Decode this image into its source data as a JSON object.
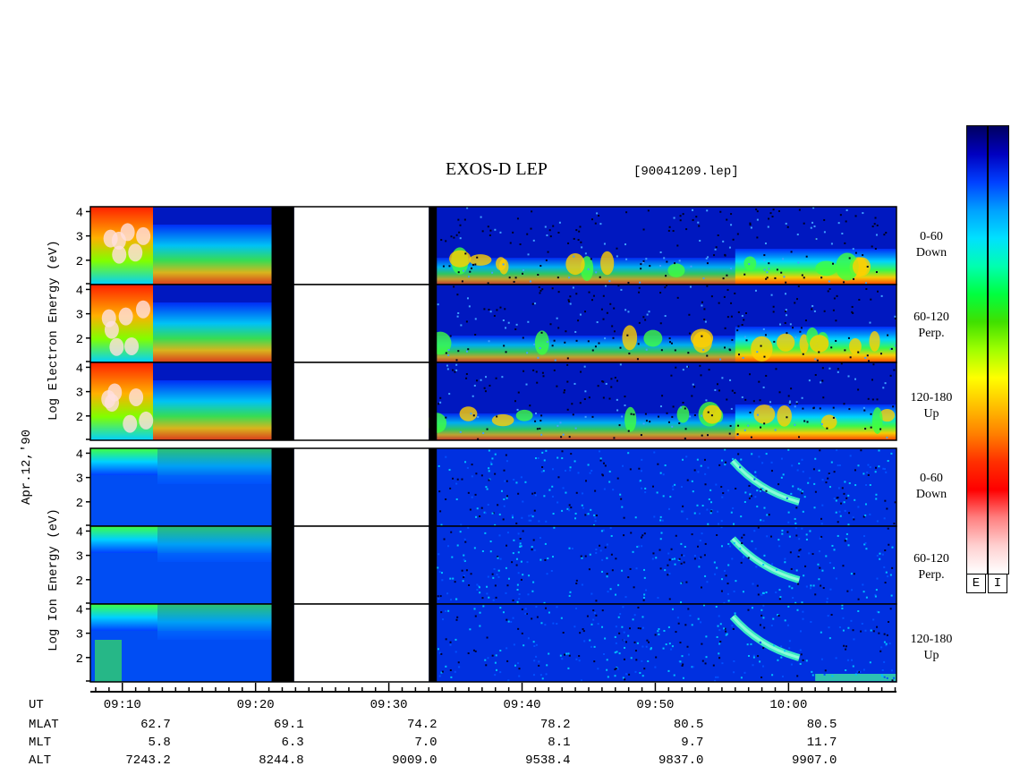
{
  "header": {
    "title": "EXOS-D LEP",
    "filename": "[90041209.lep]"
  },
  "left_labels": {
    "date": "Apr.12,'90",
    "electron": "Log  Electron  Energy (eV)",
    "ion": "Log  Ion  Energy (eV)"
  },
  "panels": [
    {
      "species": "electron",
      "pitch_label_1": "0-60",
      "pitch_label_2": "Down"
    },
    {
      "species": "electron",
      "pitch_label_1": "60-120",
      "pitch_label_2": "Perp."
    },
    {
      "species": "electron",
      "pitch_label_1": "120-180",
      "pitch_label_2": "Up"
    },
    {
      "species": "ion",
      "pitch_label_1": "0-60",
      "pitch_label_2": "Down"
    },
    {
      "species": "ion",
      "pitch_label_1": "60-120",
      "pitch_label_2": "Perp."
    },
    {
      "species": "ion",
      "pitch_label_1": "120-180",
      "pitch_label_2": "Up"
    }
  ],
  "colorbar": {
    "labels": [
      "E",
      "I"
    ],
    "colors": [
      "#000060",
      "#0000c0",
      "#0040ff",
      "#00a0ff",
      "#00e0ff",
      "#00ffb0",
      "#00ff40",
      "#40e000",
      "#a0ff00",
      "#ffff00",
      "#ffc000",
      "#ff8000",
      "#ff3000",
      "#ff0000",
      "#ff8080",
      "#ffd0d0",
      "#ffffff"
    ]
  },
  "chart_data": {
    "type": "heatmap",
    "title": "EXOS-D LEP",
    "ylabel_electron": "Log Electron Energy (eV)",
    "ylabel_ion": "Log Ion Energy (eV)",
    "y_ticks": [
      "4",
      "3",
      "2"
    ],
    "ylim": [
      1,
      4.2
    ],
    "x_ticks": [
      "09:10",
      "09:20",
      "09:30",
      "09:40",
      "09:50",
      "10:00"
    ],
    "gaps": [
      [
        "09:21.2",
        "09:22.9"
      ],
      [
        "09:33.0",
        "09:33.6"
      ]
    ],
    "no_data": [
      "09:22.9",
      "09:33.0"
    ]
  },
  "ephemeris": {
    "rows": [
      {
        "name": "UT",
        "values": [
          "09:10",
          "09:20",
          "09:30",
          "09:40",
          "09:50",
          "10:00"
        ]
      },
      {
        "name": "MLAT",
        "values": [
          "62.7",
          "69.1",
          "74.2",
          "78.2",
          "80.5",
          "80.5"
        ]
      },
      {
        "name": "MLT",
        "values": [
          "5.8",
          "6.3",
          "7.0",
          "8.1",
          "9.7",
          "11.7"
        ]
      },
      {
        "name": "ALT",
        "values": [
          "7243.2",
          "8244.8",
          "9009.0",
          "9538.4",
          "9837.0",
          "9907.0"
        ]
      }
    ]
  }
}
